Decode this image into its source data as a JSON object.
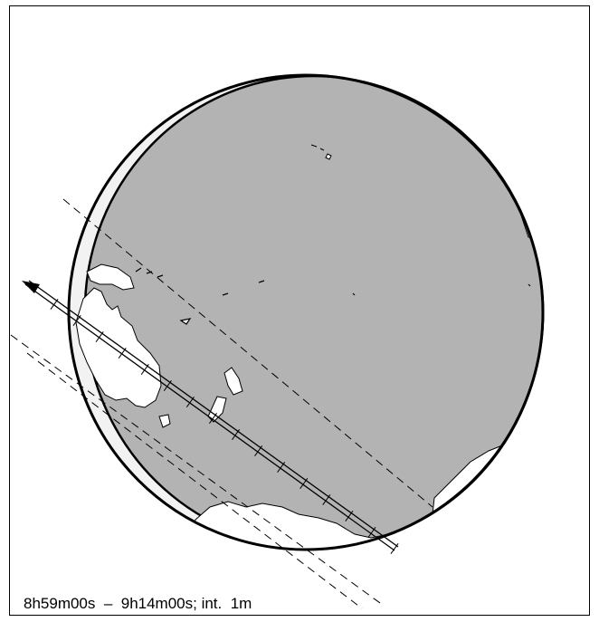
{
  "caption": "8h59m00s  –  9h14m00s; int.  1m",
  "colors": {
    "ocean_shadow": "#b3b3b3",
    "land": "#ffffff",
    "outline": "#000000",
    "penumbra_light": "#f2f2f2"
  },
  "map": {
    "projection": "orthographic globe",
    "track_interval_minutes": 1,
    "track_tick_count": 15
  }
}
